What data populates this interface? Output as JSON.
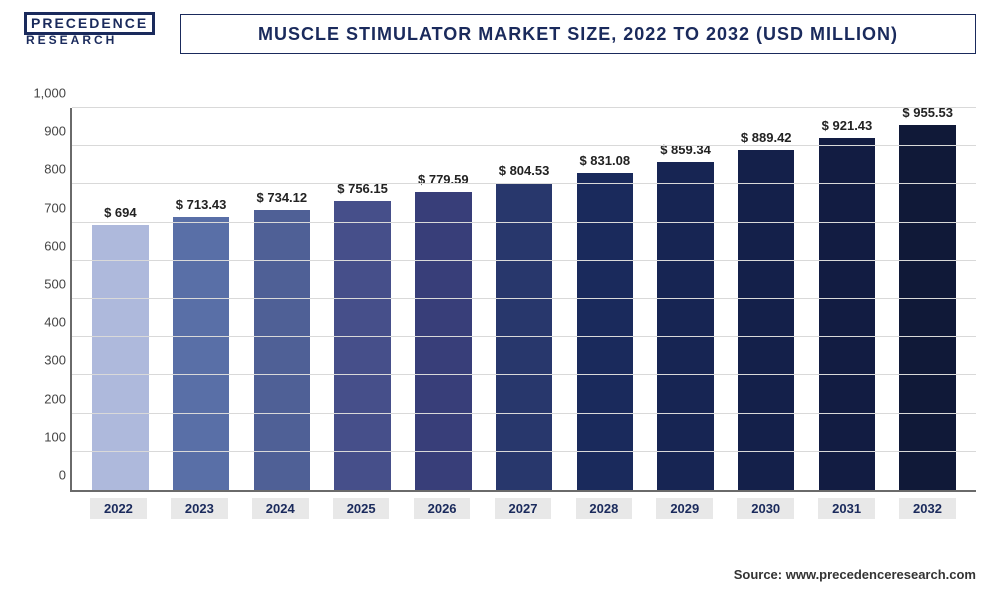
{
  "logo": {
    "top": "PRECEDENCE",
    "bottom": "RESEARCH"
  },
  "title": "MUSCLE STIMULATOR MARKET SIZE, 2022 TO 2032 (USD MILLION)",
  "source": "Source: www.precedenceresearch.com",
  "chart": {
    "type": "bar",
    "ylim": [
      0,
      1000
    ],
    "ytick_step": 100,
    "ytick_labels": [
      "0",
      "100",
      "200",
      "300",
      "400",
      "500",
      "600",
      "700",
      "800",
      "900",
      "1,000"
    ],
    "grid_color": "#d9d9d9",
    "axis_color": "#6a6a6a",
    "background_color": "#ffffff",
    "label_fontsize": 13,
    "value_prefix": "$ ",
    "categories": [
      "2022",
      "2023",
      "2024",
      "2025",
      "2026",
      "2027",
      "2028",
      "2029",
      "2030",
      "2031",
      "2032"
    ],
    "values": [
      694,
      713.43,
      734.12,
      756.15,
      779.59,
      804.53,
      831.08,
      859.34,
      889.42,
      921.43,
      955.53
    ],
    "value_labels": [
      "$ 694",
      "$ 713.43",
      "$ 734.12",
      "$ 756.15",
      "$ 779.59",
      "$ 804.53",
      "$ 831.08",
      "$ 859.34",
      "$ 889.42",
      "$ 921.43",
      "$ 955.53"
    ],
    "bar_colors": [
      "#aeb9dc",
      "#596fa7",
      "#4f6096",
      "#464f8a",
      "#383e79",
      "#28376c",
      "#1a2a5c",
      "#172553",
      "#14204a",
      "#121c42",
      "#101938"
    ],
    "bar_width_pct": 70,
    "x_label_bg": "#e8e8e8",
    "x_label_color": "#1a2a5c"
  }
}
